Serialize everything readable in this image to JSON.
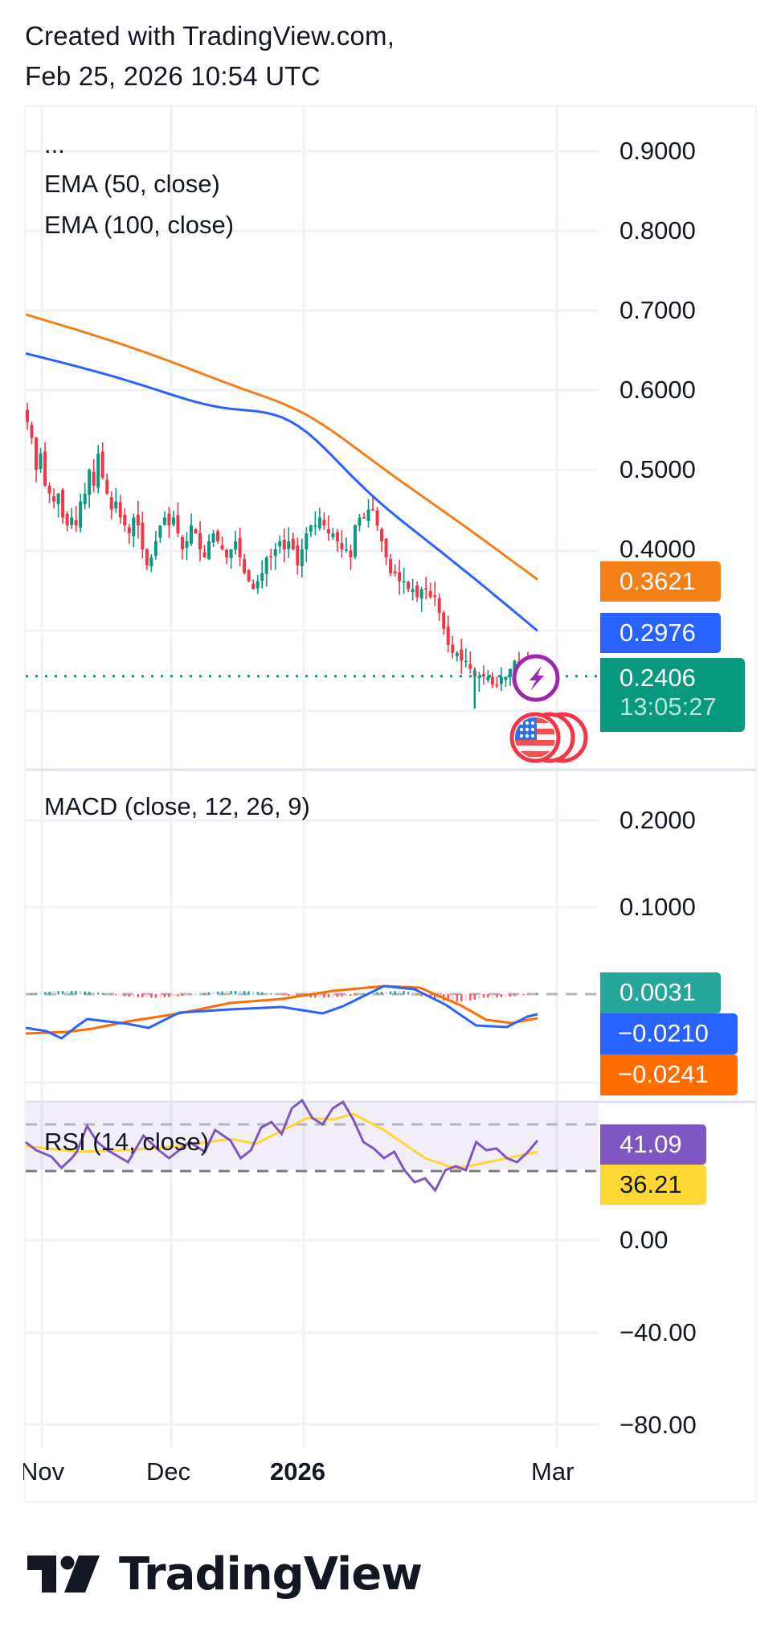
{
  "header": {
    "line1": "Created with TradingView.com,",
    "line2": "Feb 25, 2026 10:54 UTC"
  },
  "colors": {
    "up": "#089981",
    "down": "#f23645",
    "ema50": "#2962ff",
    "ema100": "#f57f17",
    "grid": "#f0f3fa",
    "macd_line": "#2962ff",
    "macd_signal": "#ff6d00",
    "rsi_line": "#7e57c2",
    "rsi_ma": "#fdd835",
    "rsi_band": "#7e57c2"
  },
  "main_pane": {
    "legend": [
      "...",
      "EMA (50, close)",
      "EMA (100, close)"
    ],
    "price_axis": [
      "0.9000",
      "0.8000",
      "0.7000",
      "0.6000",
      "0.5000",
      "0.4000"
    ],
    "tags": {
      "ema100": "0.3621",
      "ema50": "0.2976",
      "last_price": "0.2406",
      "countdown": "13:05:27"
    },
    "icons": [
      "lightning-event-icon",
      "us-flag-economic-event-icon"
    ]
  },
  "macd_pane": {
    "legend": "MACD (close, 12, 26, 9)",
    "axis": [
      "0.2000",
      "0.1000"
    ],
    "tags": {
      "histogram": "0.0031",
      "macd": "−0.0210",
      "signal": "−0.0241"
    }
  },
  "rsi_pane": {
    "legend": "RSI (14, close)",
    "axis": [
      "0.00",
      "−40.00",
      "−80.00"
    ],
    "tags": {
      "rsi": "41.09",
      "rsi_ma": "36.21"
    }
  },
  "time_axis": [
    "Nov",
    "Dec",
    "2026",
    "Mar"
  ],
  "logo": {
    "text": "TradingView"
  },
  "chart_data": {
    "type": "candlestick",
    "title": "",
    "panes": [
      {
        "name": "price",
        "ylim": [
          0.2,
          0.92
        ],
        "yticks": [
          0.9,
          0.8,
          0.7,
          0.6,
          0.5,
          0.4
        ],
        "x_start": "2025-10-29",
        "x_end": "2026-02-25",
        "closes": [
          0.56,
          0.54,
          0.5,
          0.52,
          0.48,
          0.47,
          0.46,
          0.47,
          0.44,
          0.43,
          0.44,
          0.43,
          0.46,
          0.47,
          0.5,
          0.48,
          0.52,
          0.49,
          0.47,
          0.45,
          0.46,
          0.44,
          0.43,
          0.42,
          0.44,
          0.43,
          0.4,
          0.38,
          0.39,
          0.41,
          0.43,
          0.44,
          0.43,
          0.44,
          0.42,
          0.4,
          0.41,
          0.43,
          0.42,
          0.4,
          0.39,
          0.41,
          0.42,
          0.41,
          0.4,
          0.39,
          0.4,
          0.41,
          0.39,
          0.37,
          0.36,
          0.35,
          0.36,
          0.37,
          0.39,
          0.39,
          0.4,
          0.41,
          0.4,
          0.41,
          0.4,
          0.38,
          0.4,
          0.42,
          0.43,
          0.43,
          0.44,
          0.43,
          0.42,
          0.42,
          0.41,
          0.4,
          0.4,
          0.39,
          0.43,
          0.44,
          0.44,
          0.45,
          0.45,
          0.43,
          0.41,
          0.39,
          0.37,
          0.37,
          0.36,
          0.36,
          0.35,
          0.35,
          0.34,
          0.35,
          0.35,
          0.34,
          0.34,
          0.32,
          0.3,
          0.28,
          0.27,
          0.27,
          0.26,
          0.26,
          0.25,
          0.24,
          0.24,
          0.24,
          0.24,
          0.23,
          0.23,
          0.24,
          0.24,
          0.25,
          0.26,
          0.25,
          0.25,
          0.25,
          0.245,
          0.241
        ],
        "ema50": {
          "start": 0.646,
          "end": 0.2976
        },
        "ema100": {
          "start": 0.695,
          "end": 0.3621
        },
        "last_price": 0.2406
      },
      {
        "name": "MACD (close, 12, 26, 9)",
        "yticks": [
          0.2,
          0.1
        ],
        "macd_last": -0.021,
        "signal_last": -0.0241,
        "histogram_last": 0.0031
      },
      {
        "name": "RSI (14, close)",
        "yticks": [
          0.0,
          -40.0,
          -80.0
        ],
        "rsi_last": 41.09,
        "rsi_ma_last": 36.21
      }
    ],
    "xlabel": "",
    "ylabel": "",
    "x_ticks": [
      "Nov",
      "Dec",
      "2026",
      "Mar"
    ],
    "grid": true
  }
}
